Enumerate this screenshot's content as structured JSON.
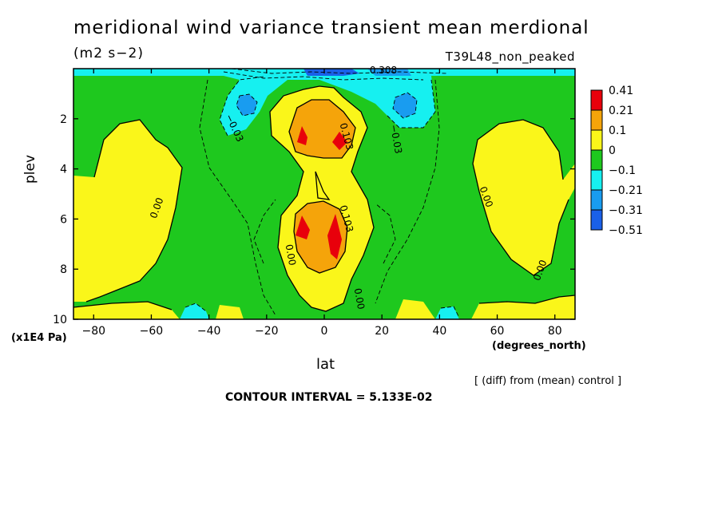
{
  "chart_data": {
    "type": "heatmap",
    "title": "meridional wind variance transient mean merdional",
    "units_label": "(m2 s−2)",
    "run_label": "T39L48_non_peaked",
    "xlabel": "lat",
    "x_units": "(degrees_north)",
    "ylabel": "plev",
    "y_units": "(x1E4 Pa)",
    "xlim": [
      -87,
      87
    ],
    "ylim": [
      10,
      0
    ],
    "x_ticks": [
      "−80",
      "−60",
      "−40",
      "−20",
      "0",
      "20",
      "40",
      "60",
      "80"
    ],
    "y_ticks": [
      "2",
      "4",
      "6",
      "8",
      "10"
    ],
    "contour_labels": [
      "0.00",
      "0.00",
      "0.00",
      "0.00",
      "0.103",
      "0.103",
      "−0.03",
      "−0.03",
      "0.00",
      "0.308"
    ],
    "legend": {
      "labels": [
        "0.41",
        "0.21",
        "0.1",
        "0",
        "−0.1",
        "−0.21",
        "−0.31",
        "−0.51"
      ],
      "colors": [
        "#e8000b",
        "#f5a40a",
        "#faf61a",
        "#1ec81e",
        "#16f0f0",
        "#199cf0",
        "#1a60e8"
      ]
    },
    "note": "[ (diff) from (mean) control ]",
    "contour_interval": "CONTOUR INTERVAL = 5.133E-02"
  }
}
